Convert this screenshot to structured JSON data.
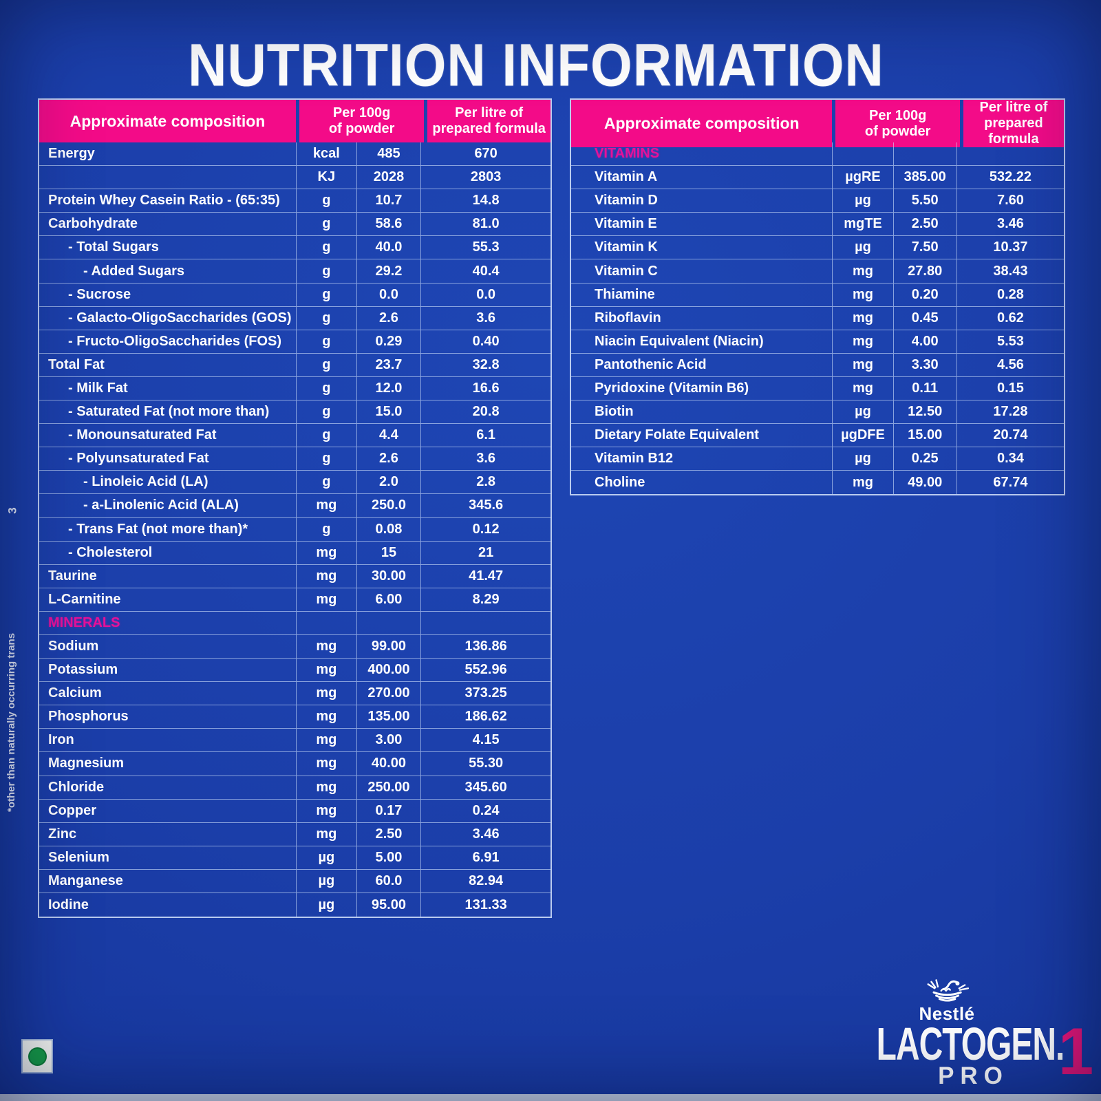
{
  "title": "NUTRITION INFORMATION",
  "table_headers": {
    "composition": "Approximate composition",
    "per_100g": [
      "Per 100g",
      "of powder"
    ],
    "per_litre": [
      "Per litre of",
      "prepared formula"
    ]
  },
  "left_table": {
    "rows": [
      {
        "label": "Energy",
        "indent": 0,
        "unit": "kcal",
        "per_100g": "485",
        "per_litre": "670"
      },
      {
        "label": "",
        "indent": 0,
        "unit": "KJ",
        "per_100g": "2028",
        "per_litre": "2803"
      },
      {
        "label": "Protein Whey Casein Ratio - (65:35)",
        "indent": 0,
        "unit": "g",
        "per_100g": "10.7",
        "per_litre": "14.8"
      },
      {
        "label": "Carbohydrate",
        "indent": 0,
        "unit": "g",
        "per_100g": "58.6",
        "per_litre": "81.0"
      },
      {
        "label": "- Total Sugars",
        "indent": 1,
        "unit": "g",
        "per_100g": "40.0",
        "per_litre": "55.3"
      },
      {
        "label": "- Added Sugars",
        "indent": 2,
        "unit": "g",
        "per_100g": "29.2",
        "per_litre": "40.4"
      },
      {
        "label": "- Sucrose",
        "indent": 1,
        "unit": "g",
        "per_100g": "0.0",
        "per_litre": "0.0"
      },
      {
        "label": "- Galacto-OligoSaccharides (GOS)",
        "indent": 1,
        "unit": "g",
        "per_100g": "2.6",
        "per_litre": "3.6"
      },
      {
        "label": "- Fructo-OligoSaccharides (FOS)",
        "indent": 1,
        "unit": "g",
        "per_100g": "0.29",
        "per_litre": "0.40"
      },
      {
        "label": "Total Fat",
        "indent": 0,
        "unit": "g",
        "per_100g": "23.7",
        "per_litre": "32.8"
      },
      {
        "label": "- Milk Fat",
        "indent": 1,
        "unit": "g",
        "per_100g": "12.0",
        "per_litre": "16.6"
      },
      {
        "label": "- Saturated Fat (not more than)",
        "indent": 1,
        "unit": "g",
        "per_100g": "15.0",
        "per_litre": "20.8"
      },
      {
        "label": "- Monounsaturated Fat",
        "indent": 1,
        "unit": "g",
        "per_100g": "4.4",
        "per_litre": "6.1"
      },
      {
        "label": "- Polyunsaturated Fat",
        "indent": 1,
        "unit": "g",
        "per_100g": "2.6",
        "per_litre": "3.6"
      },
      {
        "label": "- Linoleic Acid (LA)",
        "indent": 2,
        "unit": "g",
        "per_100g": "2.0",
        "per_litre": "2.8"
      },
      {
        "label": "- a-Linolenic Acid (ALA)",
        "indent": 2,
        "unit": "mg",
        "per_100g": "250.0",
        "per_litre": "345.6"
      },
      {
        "label": "- Trans Fat (not more than)*",
        "indent": 1,
        "unit": "g",
        "per_100g": "0.08",
        "per_litre": "0.12"
      },
      {
        "label": "- Cholesterol",
        "indent": 1,
        "unit": "mg",
        "per_100g": "15",
        "per_litre": "21"
      },
      {
        "label": "Taurine",
        "indent": 0,
        "unit": "mg",
        "per_100g": "30.00",
        "per_litre": "41.47"
      },
      {
        "label": "L-Carnitine",
        "indent": 0,
        "unit": "mg",
        "per_100g": "6.00",
        "per_litre": "8.29"
      },
      {
        "label": "MINERALS",
        "section": true,
        "unit": "",
        "per_100g": "",
        "per_litre": ""
      },
      {
        "label": "Sodium",
        "indent": 0,
        "unit": "mg",
        "per_100g": "99.00",
        "per_litre": "136.86"
      },
      {
        "label": "Potassium",
        "indent": 0,
        "unit": "mg",
        "per_100g": "400.00",
        "per_litre": "552.96"
      },
      {
        "label": "Calcium",
        "indent": 0,
        "unit": "mg",
        "per_100g": "270.00",
        "per_litre": "373.25"
      },
      {
        "label": "Phosphorus",
        "indent": 0,
        "unit": "mg",
        "per_100g": "135.00",
        "per_litre": "186.62"
      },
      {
        "label": "Iron",
        "indent": 0,
        "unit": "mg",
        "per_100g": "3.00",
        "per_litre": "4.15"
      },
      {
        "label": "Magnesium",
        "indent": 0,
        "unit": "mg",
        "per_100g": "40.00",
        "per_litre": "55.30"
      },
      {
        "label": "Chloride",
        "indent": 0,
        "unit": "mg",
        "per_100g": "250.00",
        "per_litre": "345.60"
      },
      {
        "label": "Copper",
        "indent": 0,
        "unit": "mg",
        "per_100g": "0.17",
        "per_litre": "0.24"
      },
      {
        "label": "Zinc",
        "indent": 0,
        "unit": "mg",
        "per_100g": "2.50",
        "per_litre": "3.46"
      },
      {
        "label": "Selenium",
        "indent": 0,
        "unit": "µg",
        "per_100g": "5.00",
        "per_litre": "6.91"
      },
      {
        "label": "Manganese",
        "indent": 0,
        "unit": "µg",
        "per_100g": "60.0",
        "per_litre": "82.94"
      },
      {
        "label": "Iodine",
        "indent": 0,
        "unit": "µg",
        "per_100g": "95.00",
        "per_litre": "131.33"
      }
    ]
  },
  "right_table": {
    "rows": [
      {
        "label": "VITAMINS",
        "section": true,
        "unit": "",
        "per_100g": "",
        "per_litre": ""
      },
      {
        "label": "Vitamin A",
        "indent": 0,
        "unit": "µgRE",
        "per_100g": "385.00",
        "per_litre": "532.22"
      },
      {
        "label": "Vitamin D",
        "indent": 0,
        "unit": "µg",
        "per_100g": "5.50",
        "per_litre": "7.60"
      },
      {
        "label": "Vitamin E",
        "indent": 0,
        "unit": "mgTE",
        "per_100g": "2.50",
        "per_litre": "3.46"
      },
      {
        "label": "Vitamin K",
        "indent": 0,
        "unit": "µg",
        "per_100g": "7.50",
        "per_litre": "10.37"
      },
      {
        "label": "Vitamin C",
        "indent": 0,
        "unit": "mg",
        "per_100g": "27.80",
        "per_litre": "38.43"
      },
      {
        "label": "Thiamine",
        "indent": 0,
        "unit": "mg",
        "per_100g": "0.20",
        "per_litre": "0.28"
      },
      {
        "label": "Riboflavin",
        "indent": 0,
        "unit": "mg",
        "per_100g": "0.45",
        "per_litre": "0.62"
      },
      {
        "label": "Niacin Equivalent (Niacin)",
        "indent": 0,
        "unit": "mg",
        "per_100g": "4.00",
        "per_litre": "5.53"
      },
      {
        "label": "Pantothenic Acid",
        "indent": 0,
        "unit": "mg",
        "per_100g": "3.30",
        "per_litre": "4.56"
      },
      {
        "label": "Pyridoxine (Vitamin B6)",
        "indent": 0,
        "unit": "mg",
        "per_100g": "0.11",
        "per_litre": "0.15"
      },
      {
        "label": "Biotin",
        "indent": 0,
        "unit": "µg",
        "per_100g": "12.50",
        "per_litre": "17.28"
      },
      {
        "label": "Dietary Folate Equivalent",
        "indent": 0,
        "unit": "µgDFE",
        "per_100g": "15.00",
        "per_litre": "20.74"
      },
      {
        "label": "Vitamin B12",
        "indent": 0,
        "unit": "µg",
        "per_100g": "0.25",
        "per_litre": "0.34"
      },
      {
        "label": "Choline",
        "indent": 0,
        "unit": "mg",
        "per_100g": "49.00",
        "per_litre": "67.74"
      }
    ]
  },
  "side_note": "*other than naturally occurring trans",
  "side_page_number": "3",
  "vegetarian_mark": "green-dot",
  "brand": {
    "maker": "Nestlé",
    "product": "LACTOGEN.",
    "line": "PRO",
    "stage": "1"
  },
  "colors": {
    "background_blue": "#1b3ea9",
    "header_pink": "#f30b88",
    "section_pink": "#e6119a",
    "stage_pink": "#e91578",
    "veg_green": "#169c46",
    "grid_line": "#cddefa"
  }
}
